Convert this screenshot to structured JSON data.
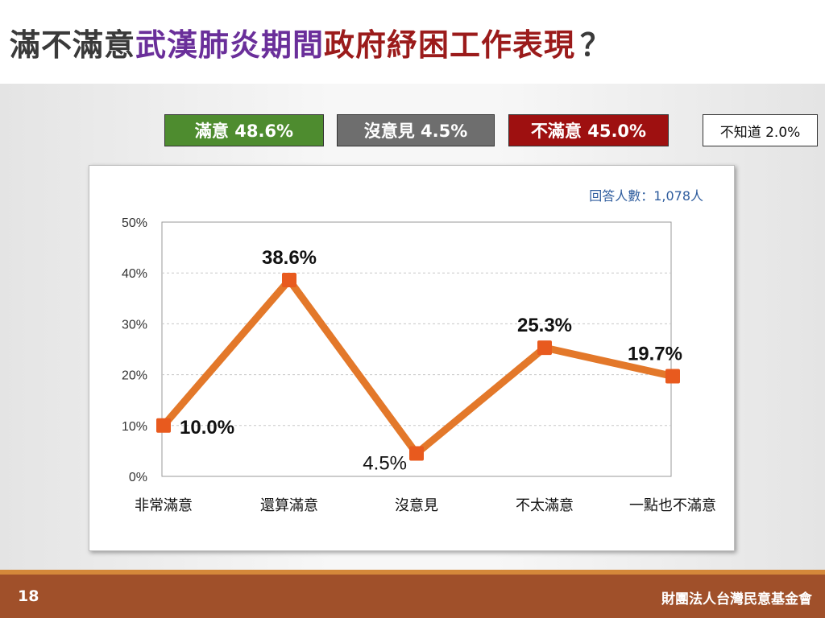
{
  "title": {
    "part1": "滿不滿意",
    "part2": "武漢肺炎期間",
    "part3": "政府紓困工作表現",
    "part4": "？"
  },
  "badges": {
    "satisfied": "滿意 48.6%",
    "neutral": "沒意見 4.5%",
    "unsatisfied": "不滿意 45.0%",
    "unknown": "不知道 2.0%"
  },
  "colors": {
    "satisfied": "#4e8c2f",
    "neutral": "#6e6e6e",
    "unsatisfied": "#9e1010",
    "line": "#e3782a",
    "marker": "#e85a1e",
    "footer": "#a0502a"
  },
  "chart_data": {
    "type": "line",
    "respondents_note": "回答人數：1,078人",
    "categories": [
      "非常滿意",
      "還算滿意",
      "沒意見",
      "不太滿意",
      "一點也不滿意"
    ],
    "values": [
      10.0,
      38.6,
      4.5,
      25.3,
      19.7
    ],
    "data_labels": [
      "10.0%",
      "38.6%",
      "4.5%",
      "25.3%",
      "19.7%"
    ],
    "ylim": [
      0,
      50
    ],
    "yticks": [
      "0%",
      "10%",
      "20%",
      "30%",
      "40%",
      "50%"
    ],
    "grid": true,
    "legend": "none"
  },
  "footer": {
    "page": "18",
    "org": "財團法人台灣民意基金會"
  }
}
